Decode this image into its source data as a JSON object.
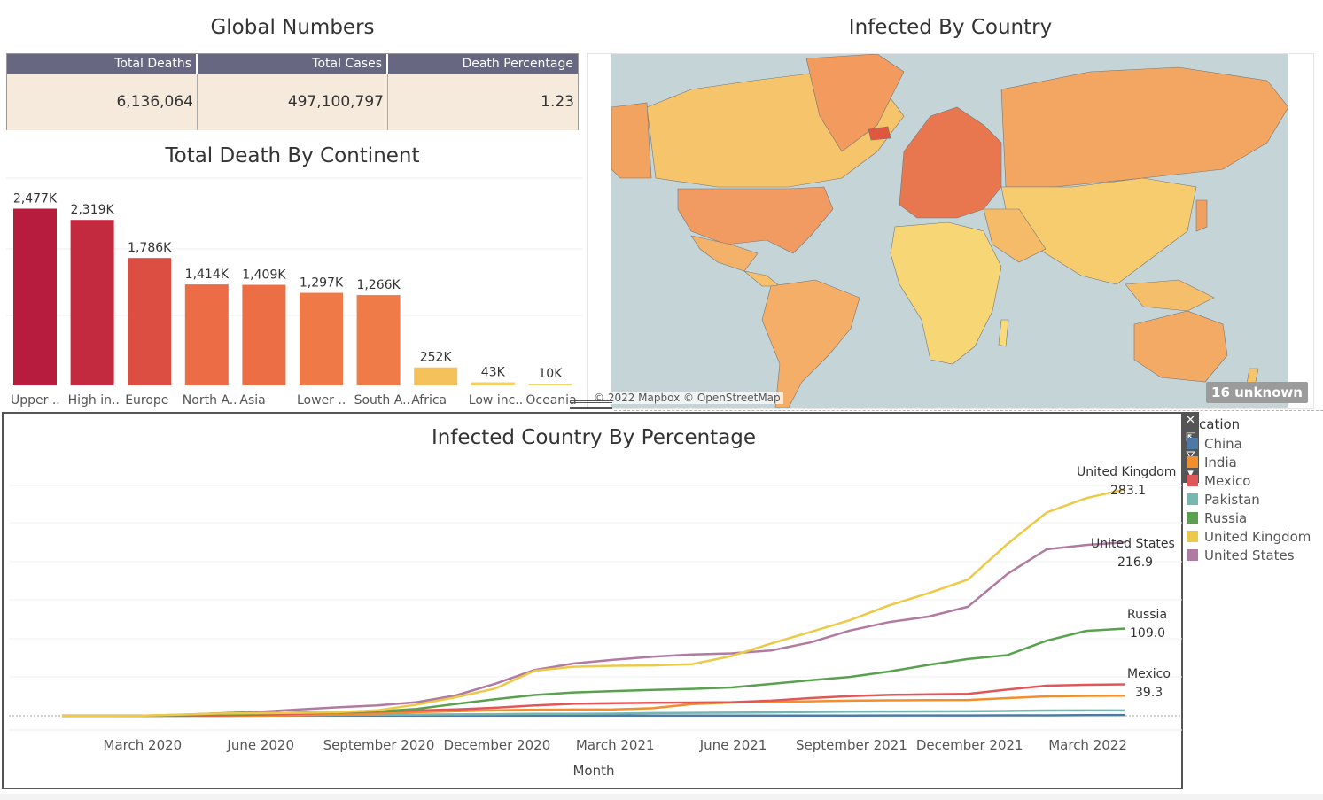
{
  "titles": {
    "global_numbers": "Global Numbers",
    "infected_by_country": "Infected By Country",
    "total_death_by_continent": "Total Death By Continent",
    "infected_country_by_percentage": "Infected Country By Percentage"
  },
  "global_table": {
    "headers": [
      "Total Deaths",
      "Total Cases",
      "Death Percentage"
    ],
    "values": [
      "6,136,064",
      "497,100,797",
      "1.23"
    ]
  },
  "map": {
    "attribution": "© 2022 Mapbox © OpenStreetMap",
    "unknown_badge": "16 unknown"
  },
  "legend": {
    "title": "cation",
    "items": [
      {
        "name": "China",
        "color": "#4e79a7"
      },
      {
        "name": "India",
        "color": "#f28e2b"
      },
      {
        "name": "Mexico",
        "color": "#e15759"
      },
      {
        "name": "Pakistan",
        "color": "#76b7b2"
      },
      {
        "name": "Russia",
        "color": "#59a14f"
      },
      {
        "name": "United Kingdom",
        "color": "#edc948"
      },
      {
        "name": "United States",
        "color": "#b07aa1"
      }
    ]
  },
  "toolbar": {
    "close_icon": "close-icon",
    "popout_icon": "popout-icon",
    "filter_icon": "filter-icon",
    "more_icon": "more-icon"
  },
  "chart_data": [
    {
      "type": "bar",
      "title": "Total Death By Continent",
      "categories": [
        "Upper ..",
        "High in..",
        "Europe",
        "North A..",
        "Asia",
        "Lower ..",
        "South A..",
        "Africa",
        "Low inc..",
        "Oceania"
      ],
      "values": [
        2477,
        2319,
        1786,
        1414,
        1409,
        1297,
        1266,
        252,
        43,
        10
      ],
      "data_labels": [
        "2,477K",
        "2,319K",
        "1,786K",
        "1,414K",
        "1,409K",
        "1,297K",
        "1,266K",
        "252K",
        "43K",
        "10K"
      ],
      "colors": [
        "#b71c3e",
        "#c3293f",
        "#dc4e41",
        "#eb6c45",
        "#ec6e45",
        "#ef7a48",
        "#ef7c48",
        "#f4c15b",
        "#f6cf63",
        "#f7d56a"
      ],
      "ylim": [
        0,
        2600
      ]
    },
    {
      "type": "line",
      "title": "Infected Country By Percentage",
      "xlabel": "Month",
      "ylabel": "",
      "x_ticks": [
        "March 2020",
        "June 2020",
        "September 2020",
        "December 2020",
        "March 2021",
        "June 2021",
        "September 2021",
        "December 2021",
        "March 2022"
      ],
      "x": [
        "2020-01",
        "2020-02",
        "2020-03",
        "2020-04",
        "2020-05",
        "2020-06",
        "2020-07",
        "2020-08",
        "2020-09",
        "2020-10",
        "2020-11",
        "2020-12",
        "2021-01",
        "2021-02",
        "2021-03",
        "2021-04",
        "2021-05",
        "2021-06",
        "2021-07",
        "2021-08",
        "2021-09",
        "2021-10",
        "2021-11",
        "2021-12",
        "2022-01",
        "2022-02",
        "2022-03",
        "2022-04"
      ],
      "ylim": [
        0,
        300
      ],
      "series": [
        {
          "name": "China",
          "color": "#4e79a7",
          "values": [
            0.1,
            0.3,
            0.3,
            0.3,
            0.3,
            0.3,
            0.3,
            0.3,
            0.3,
            0.3,
            0.3,
            0.3,
            0.3,
            0.3,
            0.3,
            0.3,
            0.3,
            0.3,
            0.3,
            0.3,
            0.3,
            0.4,
            0.4,
            0.4,
            0.5,
            0.6,
            0.9,
            1.0
          ]
        },
        {
          "name": "India",
          "color": "#f28e2b",
          "values": [
            0,
            0,
            0,
            0,
            0,
            0.1,
            0.5,
            1.5,
            2.8,
            4.5,
            5.9,
            6.9,
            7.6,
            7.9,
            8.1,
            9.5,
            14.6,
            16.6,
            17.3,
            18.2,
            18.9,
            19.4,
            19.6,
            19.8,
            22.1,
            24.4,
            24.9,
            25.1
          ]
        },
        {
          "name": "Mexico",
          "color": "#e15759",
          "values": [
            0,
            0,
            0,
            0.1,
            0.5,
            1.3,
            2.6,
            4.0,
            5.3,
            6.6,
            8.1,
            10.1,
            13.1,
            15.0,
            15.8,
            16.3,
            16.6,
            17.0,
            18.9,
            22.1,
            24.6,
            26.1,
            26.9,
            27.5,
            32.8,
            37.6,
            38.8,
            39.3
          ]
        },
        {
          "name": "Pakistan",
          "color": "#76b7b2",
          "values": [
            0,
            0,
            0,
            0,
            0.1,
            0.6,
            0.9,
            1.1,
            1.3,
            1.5,
            1.8,
            2.1,
            2.4,
            2.5,
            2.8,
            3.4,
            3.8,
            4.0,
            4.3,
            4.9,
            5.3,
            5.4,
            5.5,
            5.6,
            6.1,
            6.6,
            6.7,
            6.8
          ]
        },
        {
          "name": "Russia",
          "color": "#59a14f",
          "values": [
            0,
            0,
            0,
            0.5,
            1.6,
            2.9,
            4.0,
            4.7,
            5.5,
            8.6,
            14.8,
            20.8,
            26.0,
            29.2,
            30.9,
            32.3,
            33.6,
            35.4,
            39.9,
            44.4,
            48.6,
            55.4,
            63.6,
            71.0,
            75.8,
            93.9,
            106.2,
            109.0
          ]
        },
        {
          "name": "United Kingdom",
          "color": "#edc948",
          "values": [
            0,
            0,
            0.1,
            1.6,
            2.9,
            3.3,
            3.8,
            4.5,
            6.9,
            14.0,
            23.2,
            34.1,
            56.4,
            61.3,
            62.5,
            63.0,
            64.5,
            74.7,
            90.3,
            104.7,
            119.5,
            138.0,
            153.2,
            170.3,
            214.6,
            254.1,
            272.0,
            283.1
          ]
        },
        {
          "name": "United States",
          "color": "#b07aa1",
          "values": [
            0,
            0,
            0.1,
            1.2,
            3.2,
            5.0,
            7.9,
            10.6,
            13.1,
            17.0,
            25.5,
            40.1,
            57.3,
            65.4,
            70.0,
            74.0,
            76.7,
            78.0,
            81.6,
            91.7,
            106.5,
            117.1,
            124.0,
            136.3,
            177.2,
            208.1,
            213.5,
            216.9
          ]
        }
      ],
      "end_labels": [
        {
          "name": "United Kingdom",
          "value": "283.1"
        },
        {
          "name": "United States",
          "value": "216.9"
        },
        {
          "name": "Russia",
          "value": "109.0"
        },
        {
          "name": "Mexico",
          "value": "39.3"
        }
      ]
    }
  ]
}
